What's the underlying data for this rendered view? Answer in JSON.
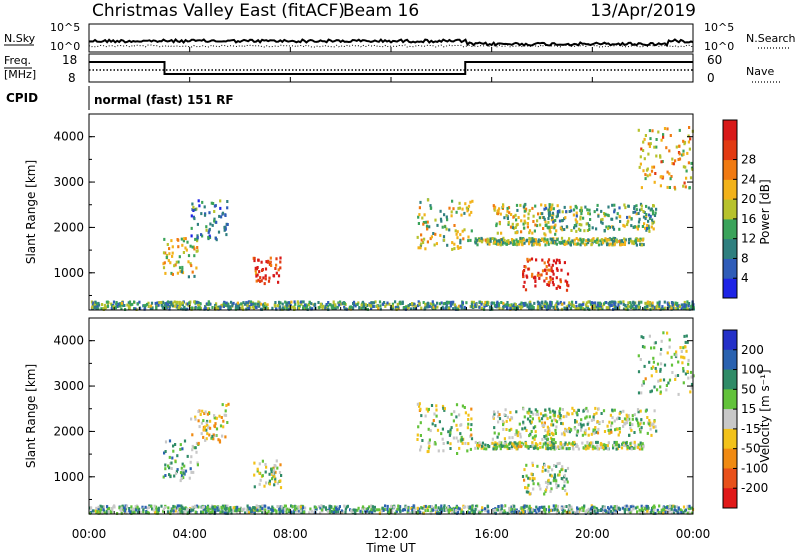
{
  "header": {
    "site": "Christmas Valley East (fitACF)",
    "beam": "Beam 16",
    "date": "13/Apr/2019"
  },
  "nsky_panel": {
    "left_label": "N.Sky",
    "right_label": "N.Search",
    "left_ticks": [
      "10^5",
      "10^0"
    ],
    "right_ticks": [
      "10^5",
      "10^0"
    ]
  },
  "freq_panel": {
    "left_label_1": "Freq.",
    "left_label_2": "[MHz]",
    "right_label": "Nave",
    "left_ticks": [
      "18",
      "8"
    ],
    "right_ticks": [
      "60",
      "0"
    ]
  },
  "cpid": {
    "label": "CPID",
    "mode": "normal (fast) 151 RF"
  },
  "time_axis": {
    "title": "Time UT",
    "ticks": [
      "00:00",
      "04:00",
      "08:00",
      "12:00",
      "16:00",
      "20:00",
      "00:00"
    ]
  },
  "chart_data": [
    {
      "type": "heatmap",
      "name": "power",
      "ylabel": "Slant Range [km]",
      "yticks": [
        "1000",
        "2000",
        "3000",
        "4000"
      ],
      "ylim": [
        180,
        4500
      ],
      "xlim_hours": [
        0,
        24
      ],
      "colorbar": {
        "label": "Power [dB]",
        "ticks": [
          "4",
          "8",
          "12",
          "16",
          "20",
          "24",
          "28"
        ],
        "colors": [
          "#1e24e6",
          "#2f5cb8",
          "#2f7f7f",
          "#3aa35a",
          "#b7c22c",
          "#f2b21a",
          "#f07a12",
          "#e23a12",
          "#d81818"
        ]
      },
      "regions": [
        {
          "t0": 2.9,
          "t1": 4.3,
          "r0": 900,
          "r1": 1800,
          "level": 0.55
        },
        {
          "t0": 4.0,
          "t1": 5.5,
          "r0": 1700,
          "r1": 2600,
          "level": 0.25
        },
        {
          "t0": 6.5,
          "t1": 7.6,
          "r0": 750,
          "r1": 1350,
          "level": 0.85
        },
        {
          "t0": 13.0,
          "t1": 15.2,
          "r0": 1500,
          "r1": 2600,
          "level": 0.5
        },
        {
          "t0": 15.3,
          "t1": 22.0,
          "r0": 1600,
          "r1": 1750,
          "level": 0.45
        },
        {
          "t0": 16.0,
          "t1": 18.5,
          "r0": 1800,
          "r1": 2500,
          "level": 0.5
        },
        {
          "t0": 17.2,
          "t1": 19.0,
          "r0": 600,
          "r1": 1300,
          "level": 0.9
        },
        {
          "t0": 18.0,
          "t1": 22.5,
          "r0": 1900,
          "r1": 2500,
          "level": 0.4
        },
        {
          "t0": 21.8,
          "t1": 24.0,
          "r0": 2800,
          "r1": 4200,
          "level": 0.6
        },
        {
          "t0": 0.0,
          "t1": 24.0,
          "r0": 180,
          "r1": 350,
          "level": 0.35
        }
      ]
    },
    {
      "type": "heatmap",
      "name": "velocity",
      "ylabel": "Slant Range [km]",
      "yticks": [
        "1000",
        "2000",
        "3000",
        "4000"
      ],
      "ylim": [
        180,
        4500
      ],
      "xlim_hours": [
        0,
        24
      ],
      "colorbar": {
        "label": "Velocity [m s⁻¹]",
        "ticks": [
          "200",
          "100",
          "50",
          "15",
          "-15",
          "-50",
          "-100",
          "-200"
        ],
        "colors": [
          "#2430c8",
          "#2a62b0",
          "#2f8b67",
          "#62c23a",
          "#c8c8c8",
          "#f2c21a",
          "#f08a12",
          "#e8501a",
          "#e01818"
        ]
      },
      "regions": [
        {
          "t0": 2.9,
          "t1": 4.3,
          "r0": 900,
          "r1": 1800,
          "level": 0.35
        },
        {
          "t0": 4.0,
          "t1": 5.5,
          "r0": 1700,
          "r1": 2600,
          "level": 0.55
        },
        {
          "t0": 6.5,
          "t1": 7.6,
          "r0": 750,
          "r1": 1350,
          "level": 0.45
        },
        {
          "t0": 13.0,
          "t1": 15.2,
          "r0": 1500,
          "r1": 2600,
          "level": 0.45
        },
        {
          "t0": 15.3,
          "t1": 22.0,
          "r0": 1600,
          "r1": 1750,
          "level": 0.45
        },
        {
          "t0": 16.0,
          "t1": 18.5,
          "r0": 1800,
          "r1": 2500,
          "level": 0.45
        },
        {
          "t0": 17.2,
          "t1": 19.0,
          "r0": 600,
          "r1": 1300,
          "level": 0.45
        },
        {
          "t0": 18.0,
          "t1": 22.5,
          "r0": 1900,
          "r1": 2500,
          "level": 0.45
        },
        {
          "t0": 21.8,
          "t1": 24.0,
          "r0": 2800,
          "r1": 4200,
          "level": 0.45
        },
        {
          "t0": 0.0,
          "t1": 24.0,
          "r0": 180,
          "r1": 350,
          "level": 0.35
        }
      ]
    }
  ]
}
